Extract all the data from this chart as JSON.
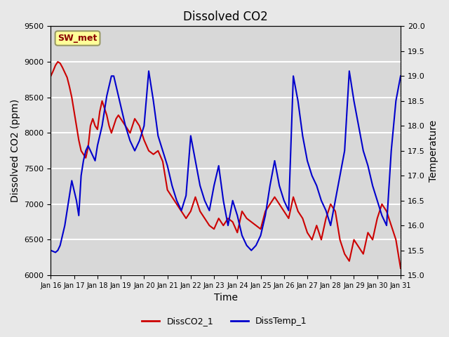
{
  "title": "Dissolved CO2",
  "xlabel": "Time",
  "ylabel_left": "Dissolved CO2 (ppm)",
  "ylabel_right": "Temperature",
  "ylim_left": [
    6000,
    9500
  ],
  "ylim_right": [
    15.0,
    20.0
  ],
  "xlim": [
    0,
    15
  ],
  "xtick_labels": [
    "Jan 16",
    "Jan 17",
    "Jan 18",
    "Jan 19",
    "Jan 20",
    "Jan 21",
    "Jan 22",
    "Jan 23",
    "Jan 24",
    "Jan 25",
    "Jan 26",
    "Jan 27",
    "Jan 28",
    "Jan 29",
    "Jan 30",
    "Jan 31"
  ],
  "legend_labels": [
    "DissCO2_1",
    "DissTemp_1"
  ],
  "legend_colors": [
    "#cc0000",
    "#0000cc"
  ],
  "line_color_co2": "#cc0000",
  "line_color_temp": "#0000cc",
  "bg_color": "#e8e8e8",
  "plot_bg": "#d8d8d8",
  "annotation_text": "SW_met",
  "annotation_bg": "#ffff99",
  "annotation_border": "#999966",
  "yticks_left": [
    6000,
    6500,
    7000,
    7500,
    8000,
    8500,
    9000,
    9500
  ],
  "yticks_right": [
    15.0,
    15.5,
    16.0,
    16.5,
    17.0,
    17.5,
    18.0,
    18.5,
    19.0,
    19.5,
    20.0
  ],
  "co2_x": [
    0,
    0.1,
    0.2,
    0.3,
    0.4,
    0.5,
    0.6,
    0.7,
    0.8,
    0.9,
    1.0,
    1.1,
    1.2,
    1.3,
    1.4,
    1.5,
    1.6,
    1.7,
    1.8,
    1.9,
    2.0,
    2.1,
    2.2,
    2.3,
    2.4,
    2.5,
    2.6,
    2.7,
    2.8,
    2.9,
    3.0,
    3.2,
    3.4,
    3.6,
    3.8,
    4.0,
    4.2,
    4.4,
    4.6,
    4.8,
    5.0,
    5.2,
    5.4,
    5.6,
    5.8,
    6.0,
    6.2,
    6.4,
    6.6,
    6.8,
    7.0,
    7.2,
    7.4,
    7.6,
    7.8,
    8.0,
    8.2,
    8.4,
    8.6,
    8.8,
    9.0,
    9.2,
    9.4,
    9.6,
    9.8,
    10.0,
    10.2,
    10.4,
    10.6,
    10.8,
    11.0,
    11.2,
    11.4,
    11.6,
    11.8,
    12.0,
    12.2,
    12.4,
    12.6,
    12.8,
    13.0,
    13.2,
    13.4,
    13.6,
    13.8,
    14.0,
    14.2,
    14.4,
    14.6,
    14.8,
    15.0
  ],
  "co2_y": [
    8800,
    8870,
    8950,
    9000,
    8980,
    8920,
    8850,
    8780,
    8650,
    8500,
    8300,
    8100,
    7900,
    7750,
    7700,
    7650,
    7800,
    8100,
    8200,
    8100,
    8050,
    8300,
    8450,
    8350,
    8250,
    8100,
    8000,
    8100,
    8200,
    8250,
    8200,
    8100,
    8000,
    8200,
    8100,
    7900,
    7750,
    7700,
    7750,
    7600,
    7200,
    7100,
    7000,
    6900,
    6800,
    6900,
    7100,
    6900,
    6800,
    6700,
    6650,
    6800,
    6700,
    6800,
    6750,
    6600,
    6900,
    6800,
    6750,
    6700,
    6650,
    6900,
    7000,
    7100,
    7000,
    6900,
    6800,
    7100,
    6900,
    6800,
    6600,
    6500,
    6700,
    6500,
    6800,
    7000,
    6900,
    6500,
    6300,
    6200,
    6500,
    6400,
    6300,
    6600,
    6500,
    6800,
    7000,
    6900,
    6700,
    6500,
    6100
  ],
  "temp_x": [
    0,
    0.1,
    0.2,
    0.3,
    0.4,
    0.5,
    0.6,
    0.7,
    0.8,
    0.9,
    1.0,
    1.1,
    1.2,
    1.3,
    1.4,
    1.5,
    1.6,
    1.7,
    1.8,
    1.9,
    2.0,
    2.1,
    2.2,
    2.3,
    2.4,
    2.5,
    2.6,
    2.7,
    2.8,
    2.9,
    3.0,
    3.2,
    3.4,
    3.6,
    3.8,
    4.0,
    4.2,
    4.4,
    4.6,
    4.8,
    5.0,
    5.2,
    5.4,
    5.6,
    5.8,
    6.0,
    6.2,
    6.4,
    6.6,
    6.8,
    7.0,
    7.2,
    7.4,
    7.6,
    7.8,
    8.0,
    8.2,
    8.4,
    8.6,
    8.8,
    9.0,
    9.2,
    9.4,
    9.6,
    9.8,
    10.0,
    10.2,
    10.4,
    10.6,
    10.8,
    11.0,
    11.2,
    11.4,
    11.6,
    11.8,
    12.0,
    12.2,
    12.4,
    12.6,
    12.8,
    13.0,
    13.2,
    13.4,
    13.6,
    13.8,
    14.0,
    14.2,
    14.4,
    14.6,
    14.8,
    15.0
  ],
  "temp_y": [
    15.5,
    15.48,
    15.46,
    15.5,
    15.6,
    15.8,
    16.0,
    16.3,
    16.6,
    16.9,
    16.7,
    16.5,
    16.2,
    17.0,
    17.3,
    17.5,
    17.6,
    17.5,
    17.4,
    17.3,
    17.6,
    17.8,
    18.0,
    18.3,
    18.6,
    18.8,
    19.0,
    19.0,
    18.8,
    18.6,
    18.4,
    18.0,
    17.7,
    17.5,
    17.7,
    18.0,
    19.1,
    18.5,
    17.8,
    17.5,
    17.2,
    16.8,
    16.5,
    16.3,
    16.6,
    17.8,
    17.3,
    16.8,
    16.5,
    16.3,
    16.8,
    17.2,
    16.5,
    16.0,
    16.5,
    16.2,
    15.8,
    15.6,
    15.5,
    15.6,
    15.8,
    16.2,
    16.8,
    17.3,
    16.8,
    16.5,
    16.3,
    19.0,
    18.5,
    17.8,
    17.3,
    17.0,
    16.8,
    16.5,
    16.3,
    16.0,
    16.5,
    17.0,
    17.5,
    19.1,
    18.5,
    18.0,
    17.5,
    17.2,
    16.8,
    16.5,
    16.2,
    16.0,
    17.5,
    18.5,
    19.0
  ]
}
